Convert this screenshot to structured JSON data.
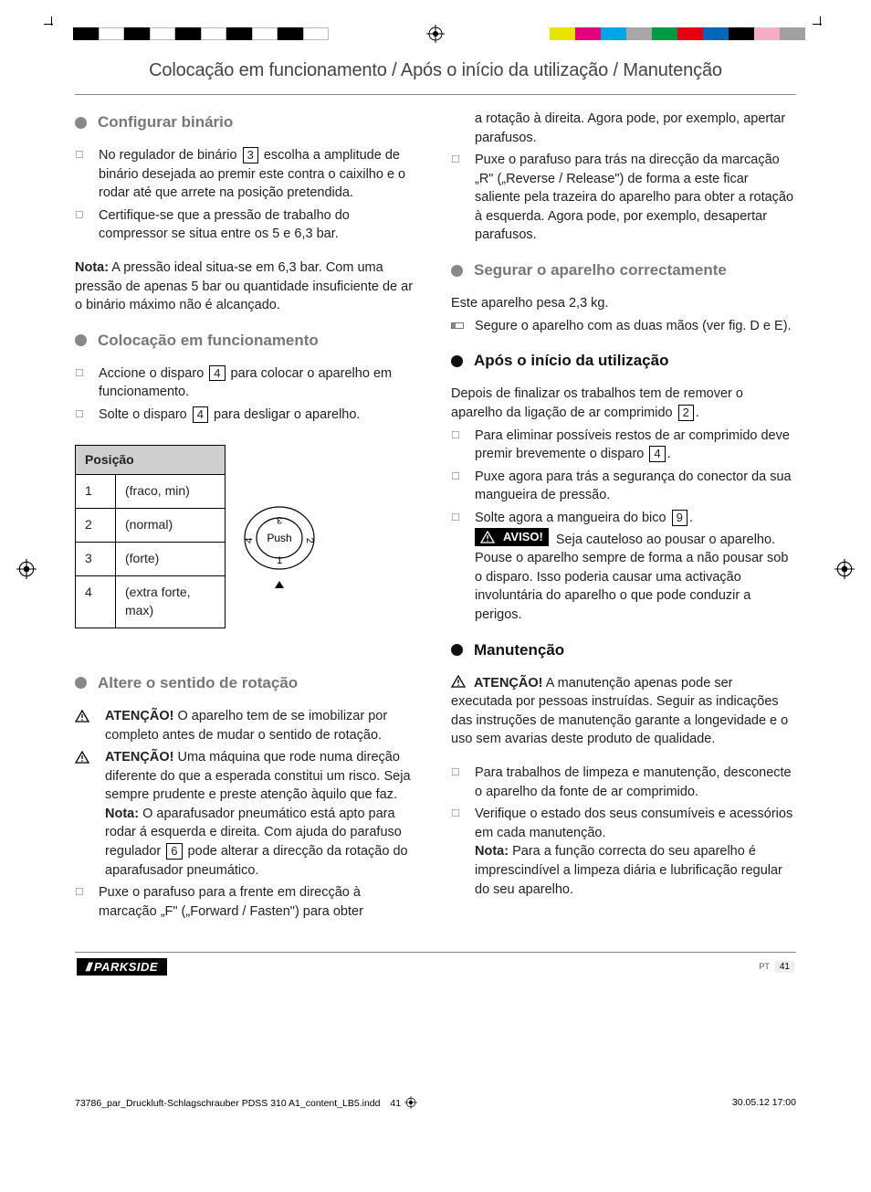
{
  "print_swatch_colors": [
    "#e7e400",
    "#e4007f",
    "#00a5e3",
    "#a7a7a7",
    "#009944",
    "#e60012",
    "#0068b7",
    "#000000",
    "#f6adc6",
    "#a1a1a1"
  ],
  "running_head": "Colocação em funcionamento / Após o início da utilização / Manutenção",
  "left": {
    "sec1_title": "Configurar binário",
    "sec1_li1_a": "No regulador de binário ",
    "sec1_li1_ref": "3",
    "sec1_li1_b": " escolha a amplitude de binário desejada ao premir este contra o caixilho e o rodar até que arrete na posição pretendida.",
    "sec1_li2": "Certifique-se que a pressão de trabalho do compressor se situa entre os 5 e 6,3 bar.",
    "sec1_nota_label": "Nota:",
    "sec1_nota": " A pressão ideal situa-se em 6,3 bar. Com uma pressão de apenas 5 bar ou quantidade insuficiente de ar o binário máximo não é alcançado.",
    "sec2_title": "Colocação em funcionamento",
    "sec2_li1_a": "Accione o disparo ",
    "sec2_li1_ref": "4",
    "sec2_li1_b": " para colocar o aparelho em funcionamento.",
    "sec2_li2_a": "Solte o disparo ",
    "sec2_li2_ref": "4",
    "sec2_li2_b": " para desligar o aparelho.",
    "table": {
      "header": "Posição",
      "rows": [
        {
          "n": "1",
          "v": "(fraco, min)"
        },
        {
          "n": "2",
          "v": "(normal)"
        },
        {
          "n": "3",
          "v": "(forte)"
        },
        {
          "n": "4",
          "v": "(extra forte, max)"
        }
      ]
    },
    "dial_label": "Push",
    "sec3_title": "Altere o sentido de rotação",
    "sec3_li1_label": "ATENÇÃO!",
    "sec3_li1": " O aparelho tem de se imobilizar por completo antes de mudar o sentido de rotação.",
    "sec3_li2_label": "ATENÇÃO!",
    "sec3_li2": " Uma máquina que rode numa direção diferente do que a esperada constitui um risco. Seja sempre prudente e preste atenção àquilo que faz.",
    "sec3_li2_nota_label": "Nota:",
    "sec3_li2_nota_a": " O aparafusador pneumático está apto para rodar á esquerda e direita. Com ajuda do parafuso regulador ",
    "sec3_li2_nota_ref": "6",
    "sec3_li2_nota_b": " pode alterar a direcção da rotação do aparafusador pneumático.",
    "sec3_li3": "Puxe o parafuso para a frente em direcção à marcação „F\" („Forward / Fasten\") para obter"
  },
  "right": {
    "cont1": "a rotação à direita. Agora pode, por exemplo, apertar parafusos.",
    "cont2": "Puxe o parafuso para trás na direcção da marcação „R\" („Reverse / Release\") de forma a este ficar saliente pela trazeira do aparelho para obter a rotação à esquerda. Agora pode, por exemplo, desapertar parafusos.",
    "sec4_title": "Segurar o aparelho correctamente",
    "sec4_p": "Este aparelho pesa 2,3 kg.",
    "sec4_li1": "Segure o aparelho com as duas mãos (ver fig. D e E).",
    "sec5_title": "Após o início da utilização",
    "sec5_p_a": "Depois de finalizar os trabalhos tem de remover o aparelho da ligação de ar comprimido ",
    "sec5_p_ref": "2",
    "sec5_p_b": ".",
    "sec5_li1_a": "Para eliminar possíveis restos de ar comprimido deve premir brevemente o disparo ",
    "sec5_li1_ref": "4",
    "sec5_li1_b": ".",
    "sec5_li2": "Puxe agora para trás a segurança do conector da sua mangueira de pressão.",
    "sec5_li3_a": "Solte agora a mangueira do bico ",
    "sec5_li3_ref": "9",
    "sec5_li3_b": ".",
    "sec5_li3_aviso": "AVISO!",
    "sec5_li3_c": " Seja cauteloso ao pousar o aparelho. Pouse o aparelho sempre de forma a não pousar sob o disparo. Isso poderia causar uma activação involuntária do aparelho o que pode conduzir a perigos.",
    "sec6_title": "Manutenção",
    "sec6_warn_label": "ATENÇÃO!",
    "sec6_warn": " A manutenção apenas pode ser executada por pessoas instruídas. Seguir as indicações das instruções de manutenção garante a longevidade e o uso sem avarias deste produto de qualidade.",
    "sec6_li1": "Para trabalhos de limpeza e manutenção, desconecte o aparelho da fonte de ar comprimido.",
    "sec6_li2": "Verifique o estado dos seus consumíveis e acessórios em cada manutenção.",
    "sec6_li2_nota_label": "Nota:",
    "sec6_li2_nota": " Para a função correcta do seu aparelho é imprescindível a limpeza diária e lubrificação regular do seu aparelho."
  },
  "footer": {
    "brand": "PARKSIDE",
    "lang": "PT",
    "page": "41"
  },
  "slug": {
    "file": "73786_par_Druckluft-Schlagschrauber PDSS 310 A1_content_LB5.indd",
    "pg": "41",
    "date": "30.05.12   17:00"
  }
}
